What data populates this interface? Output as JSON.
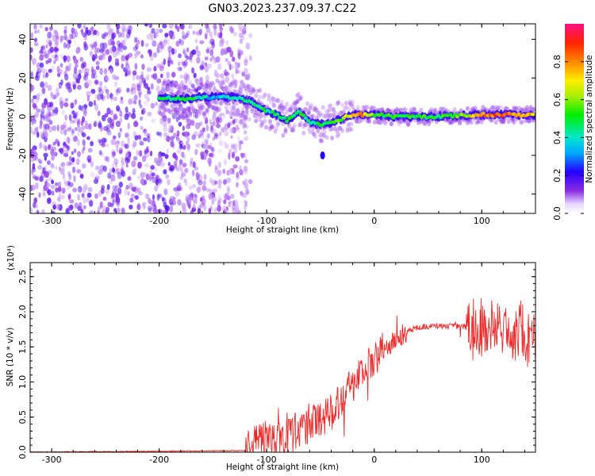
{
  "title": "GN03.2023.237.09.37.C22",
  "colorbar": {
    "label": "Normalized spectral amplitude",
    "ticks": [
      "0.0",
      "0.2",
      "0.4",
      "0.6",
      "0.8"
    ],
    "range": [
      0,
      1
    ]
  },
  "chart_data": [
    {
      "type": "heatmap",
      "title": "",
      "xlabel": "Height of straight line (km)",
      "ylabel": "Frequency (Hz)",
      "xlim": [
        -320,
        150
      ],
      "ylim": [
        -50,
        48
      ],
      "xticks": [
        "-300",
        "-200",
        "-100",
        "0",
        "100"
      ],
      "yticks": [
        "-40",
        "-20",
        "0",
        "20",
        "40"
      ],
      "description_points": {
        "noise_region_x": [
          -320,
          -125
        ],
        "signal_track": [
          {
            "x": -200,
            "y": 10,
            "amp": 0.45
          },
          {
            "x": -180,
            "y": 9,
            "amp": 0.5
          },
          {
            "x": -165,
            "y": 10,
            "amp": 0.45
          },
          {
            "x": -150,
            "y": 10,
            "amp": 0.3
          },
          {
            "x": -130,
            "y": 10,
            "amp": 0.4
          },
          {
            "x": -115,
            "y": 8,
            "amp": 0.5
          },
          {
            "x": -105,
            "y": 4,
            "amp": 0.45
          },
          {
            "x": -95,
            "y": 2,
            "amp": 0.45
          },
          {
            "x": -80,
            "y": -2,
            "amp": 0.5
          },
          {
            "x": -70,
            "y": 3,
            "amp": 0.5
          },
          {
            "x": -60,
            "y": -3,
            "amp": 0.45
          },
          {
            "x": -50,
            "y": -4,
            "amp": 0.5
          },
          {
            "x": -40,
            "y": -3,
            "amp": 0.55
          },
          {
            "x": -30,
            "y": -1,
            "amp": 0.6
          },
          {
            "x": -20,
            "y": 1,
            "amp": 0.7
          },
          {
            "x": -10,
            "y": 1,
            "amp": 0.8
          },
          {
            "x": 0,
            "y": 1,
            "amp": 0.55
          },
          {
            "x": 20,
            "y": 0,
            "amp": 0.5
          },
          {
            "x": 50,
            "y": 0,
            "amp": 0.5
          },
          {
            "x": 80,
            "y": 0.5,
            "amp": 0.55
          },
          {
            "x": 100,
            "y": 1,
            "amp": 0.8
          },
          {
            "x": 120,
            "y": 1,
            "amp": 0.85
          },
          {
            "x": 145,
            "y": 1,
            "amp": 0.75
          }
        ]
      }
    },
    {
      "type": "line",
      "title": "",
      "xlabel": "Height of straight line (km)",
      "ylabel": "SNR (10 * v/v)",
      "yscale_note": "(x10⁴)",
      "xlim": [
        -320,
        150
      ],
      "ylim": [
        0,
        2.7
      ],
      "xticks": [
        "-300",
        "-200",
        "-100",
        "0",
        "100"
      ],
      "yticks": [
        "0.0",
        "0.5",
        "1.0",
        "1.5",
        "2.0",
        "2.5"
      ],
      "color": "#ee2b2b",
      "envelope": [
        {
          "x": -320,
          "y": 0.0
        },
        {
          "x": -120,
          "y": 0.02
        },
        {
          "x": -110,
          "y": 0.15
        },
        {
          "x": -100,
          "y": 0.2
        },
        {
          "x": -80,
          "y": 0.25
        },
        {
          "x": -60,
          "y": 0.4
        },
        {
          "x": -40,
          "y": 0.6
        },
        {
          "x": -30,
          "y": 0.8
        },
        {
          "x": -20,
          "y": 1.0
        },
        {
          "x": -10,
          "y": 1.15
        },
        {
          "x": 0,
          "y": 1.3
        },
        {
          "x": 10,
          "y": 1.45
        },
        {
          "x": 20,
          "y": 1.6
        },
        {
          "x": 30,
          "y": 1.72
        },
        {
          "x": 40,
          "y": 1.78
        },
        {
          "x": 60,
          "y": 1.8
        },
        {
          "x": 80,
          "y": 1.79
        },
        {
          "x": 100,
          "y": 1.78
        },
        {
          "x": 120,
          "y": 1.75
        },
        {
          "x": 140,
          "y": 1.7
        },
        {
          "x": 150,
          "y": 1.65
        }
      ]
    }
  ]
}
